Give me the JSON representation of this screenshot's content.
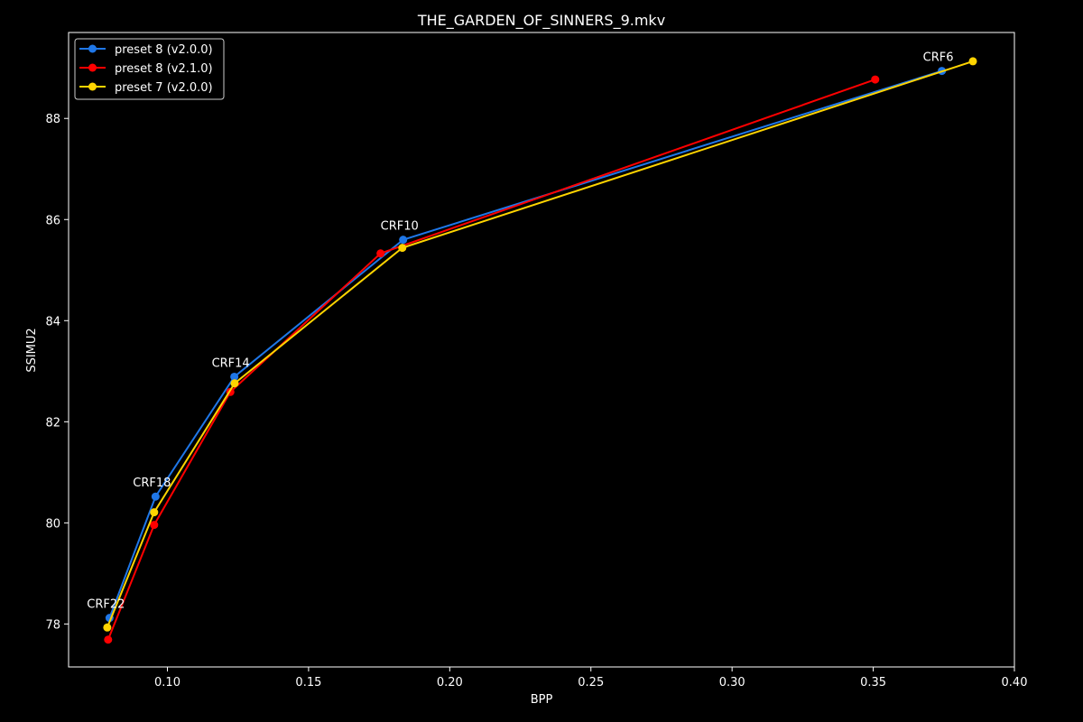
{
  "chart_data": {
    "type": "line",
    "title": "THE_GARDEN_OF_SINNERS_9.mkv",
    "xlabel": "BPP",
    "ylabel": "SSIMU2",
    "xlim": [
      0.065,
      0.4
    ],
    "ylim": [
      77.15,
      89.7
    ],
    "xticks": [
      0.1,
      0.15,
      0.2,
      0.25,
      0.3,
      0.35,
      0.4
    ],
    "xtick_labels": [
      "0.10",
      "0.15",
      "0.20",
      "0.25",
      "0.30",
      "0.35",
      "0.40"
    ],
    "yticks": [
      78,
      80,
      82,
      84,
      86,
      88
    ],
    "ytick_labels": [
      "78",
      "80",
      "82",
      "84",
      "86",
      "88"
    ],
    "grid": false,
    "legend_position": "top-left",
    "series": [
      {
        "name": "preset 8 (v2.0.0)",
        "color": "#1f77e8",
        "x": [
          0.0795,
          0.0958,
          0.1237,
          0.1835,
          0.3743
        ],
        "y": [
          78.12,
          80.52,
          82.89,
          85.6,
          88.94
        ]
      },
      {
        "name": "preset 8 (v2.1.0)",
        "color": "#ff0000",
        "x": [
          0.079,
          0.0953,
          0.1223,
          0.1755,
          0.3507
        ],
        "y": [
          77.69,
          79.96,
          82.59,
          85.33,
          88.77
        ]
      },
      {
        "name": "preset 7 (v2.0.0)",
        "color": "#ffd400",
        "x": [
          0.0787,
          0.0953,
          0.1238,
          0.1832,
          0.3853
        ],
        "y": [
          77.93,
          80.21,
          82.76,
          85.44,
          89.13
        ]
      }
    ],
    "annotations": [
      {
        "text": "CRF22",
        "x": 0.0795,
        "y": 78.12
      },
      {
        "text": "CRF18",
        "x": 0.0958,
        "y": 80.52
      },
      {
        "text": "CRF14",
        "x": 0.1237,
        "y": 82.89
      },
      {
        "text": "CRF10",
        "x": 0.1835,
        "y": 85.6
      },
      {
        "text": "CRF6",
        "x": 0.3743,
        "y": 88.94
      }
    ]
  }
}
